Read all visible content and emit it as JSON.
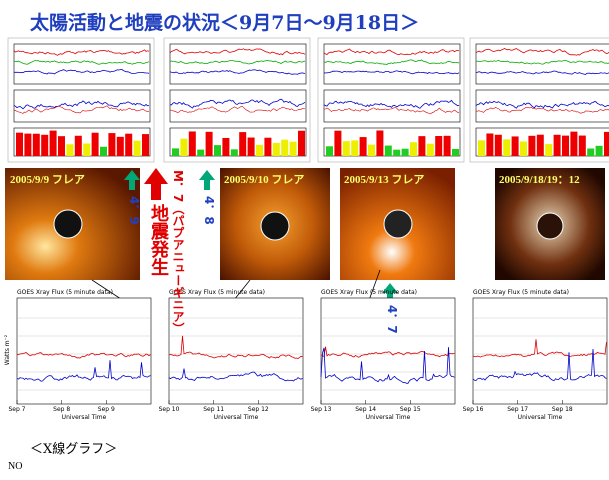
{
  "title": "太陽活動と地震の状況＜9月7日～9月18日＞",
  "flare_images": [
    {
      "label": "2005/9/9 フレア"
    },
    {
      "label": "2005/9/10 フレア"
    },
    {
      "label": "2005/9/13 フレア"
    },
    {
      "label": "2005/9/18/19：12"
    }
  ],
  "annotations": {
    "quakes": [
      "4．9",
      "4．8",
      "4．7"
    ],
    "main_quake": "地震発生",
    "main_quake_note": "M．7（パプアニューギニア）"
  },
  "xray": {
    "panel_titles": [
      "GOES Xray Flux (5 minute data)",
      "GOES Xray Flux (5 minute data)",
      "GOES Xray Flux (5 minute data)",
      "GOES Xray Flux (5 minute data)"
    ],
    "dates": [
      "Sep 7",
      "Sep 8",
      "Sep 9",
      "Sep 10",
      "Sep 11",
      "Sep 12",
      "Sep 13",
      "Sep 14",
      "Sep 15",
      "Sep 16",
      "Sep 17",
      "Sep 18"
    ],
    "x_label": "Universal Time",
    "y_label": "Watts m⁻²"
  },
  "caption": "＜X線グラフ＞",
  "footer": "NO"
}
